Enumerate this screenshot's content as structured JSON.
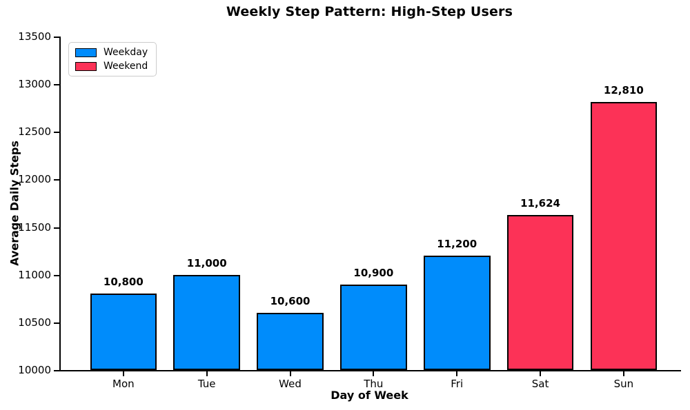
{
  "chart_data": {
    "type": "bar",
    "title": "Weekly Step Pattern: High-Step Users",
    "xlabel": "Day of Week",
    "ylabel": "Average Daily Steps",
    "categories": [
      "Mon",
      "Tue",
      "Wed",
      "Thu",
      "Fri",
      "Sat",
      "Sun"
    ],
    "values": [
      10800,
      11000,
      10600,
      10900,
      11200,
      11624,
      12810
    ],
    "value_labels": [
      "10,800",
      "11,000",
      "10,600",
      "10,900",
      "11,200",
      "11,624",
      "12,810"
    ],
    "bar_groups": [
      "weekday",
      "weekday",
      "weekday",
      "weekday",
      "weekday",
      "weekend",
      "weekend"
    ],
    "colors": {
      "weekday": "#008CFB",
      "weekend": "#FC3257",
      "bar_edge": "#000000"
    },
    "ylim": [
      10000,
      13500
    ],
    "yticks": [
      10000,
      10500,
      11000,
      11500,
      12000,
      12500,
      13000,
      13500
    ],
    "ytick_labels": [
      "10000",
      "10500",
      "11000",
      "11500",
      "12000",
      "12500",
      "13000",
      "13500"
    ],
    "grid": false,
    "legend_position": "upper left",
    "legend": [
      {
        "label": "Weekday",
        "color_key": "weekday"
      },
      {
        "label": "Weekend",
        "color_key": "weekend"
      }
    ]
  }
}
